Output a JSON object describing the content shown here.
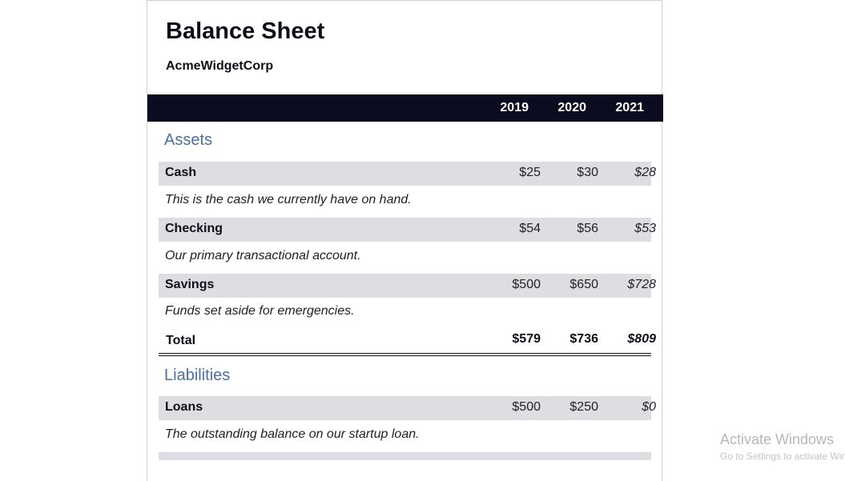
{
  "document": {
    "title": "Balance Sheet",
    "company": "AcmeWidgetCorp",
    "years": [
      "2019",
      "2020",
      "2021"
    ]
  },
  "assets": {
    "heading": "Assets",
    "items": [
      {
        "label": "Cash",
        "values": [
          "$25",
          "$30",
          "$28"
        ],
        "description": "This is the cash we currently have on hand."
      },
      {
        "label": "Checking",
        "values": [
          "$54",
          "$56",
          "$53"
        ],
        "description": "Our primary transactional account."
      },
      {
        "label": "Savings",
        "values": [
          "$500",
          "$650",
          "$728"
        ],
        "description": "Funds set aside for emergencies."
      }
    ],
    "total": {
      "label": "Total",
      "values": [
        "$579",
        "$736",
        "$809"
      ]
    }
  },
  "liabilities": {
    "heading": "Liabilities",
    "items": [
      {
        "label": "Loans",
        "values": [
          "$500",
          "$250",
          "$0"
        ],
        "description": "The outstanding balance on our startup loan."
      }
    ]
  },
  "overlay": {
    "watermark": "Activate Windows",
    "watermark_sub": "Go to Settings to activate Windows."
  },
  "colors": {
    "header_bg": "#0b0c20",
    "section_heading": "#4a6fa0",
    "row_bg": "#dedee2"
  }
}
